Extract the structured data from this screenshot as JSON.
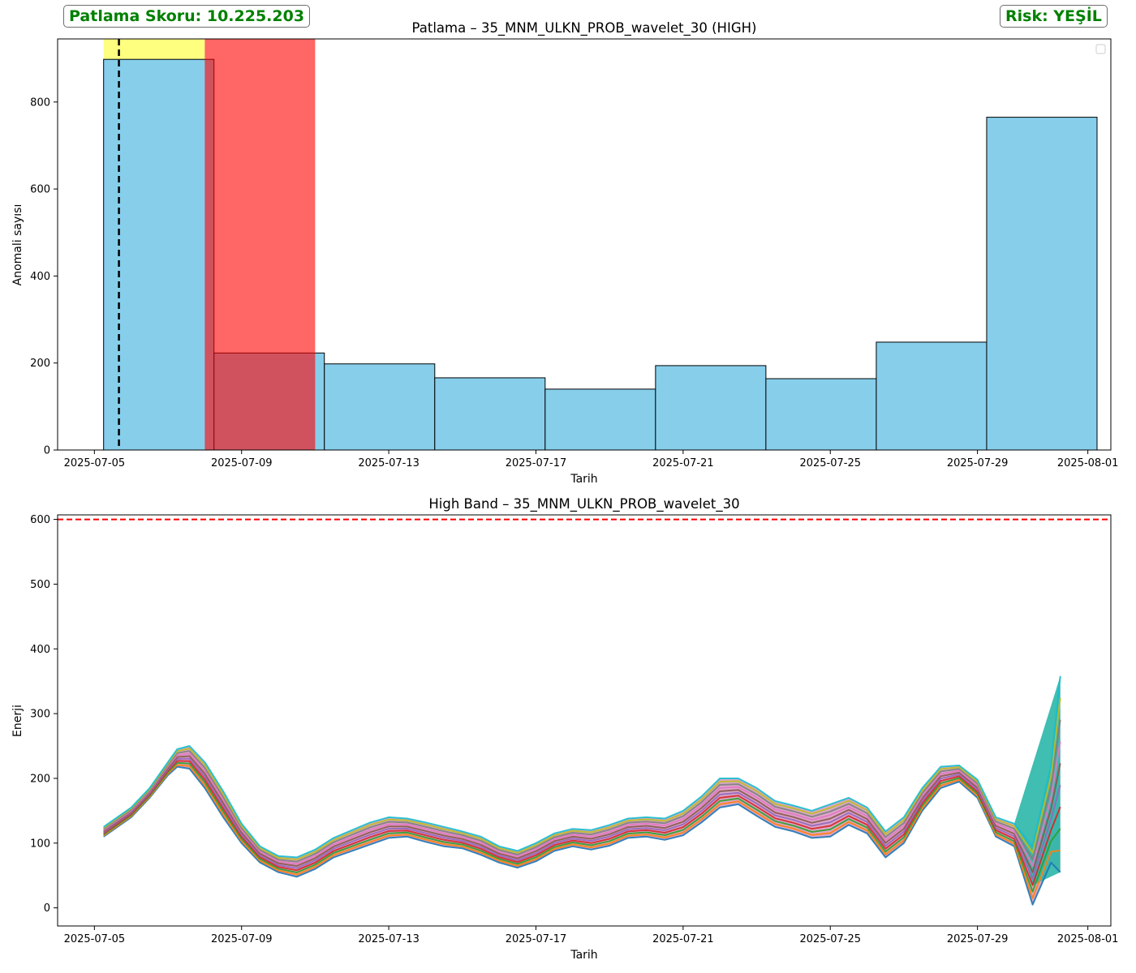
{
  "header": {
    "score_text": "Patlama Skoru: 10.225.203",
    "risk_text": "Risk: YEŞİL",
    "badge_color": "#008000"
  },
  "chart_data": [
    {
      "type": "bar",
      "title": "Patlama – 35_MNM_ULKN_PROB_wavelet_30 (HIGH)",
      "xlabel": "Tarih",
      "ylabel": "Anomali sayısı",
      "x_ticks": [
        "2025-07-05",
        "2025-07-09",
        "2025-07-13",
        "2025-07-17",
        "2025-07-21",
        "2025-07-25",
        "2025-07-29",
        "2025-08-01"
      ],
      "ylim": [
        0,
        945
      ],
      "y_ticks": [
        0,
        200,
        400,
        600,
        800
      ],
      "bar_color": "#87ceeb",
      "bins": [
        {
          "start": "2025-07-05 06:00",
          "end": "2025-07-08 06:00",
          "value": 898
        },
        {
          "start": "2025-07-08 06:00",
          "end": "2025-07-11 06:00",
          "value": 223
        },
        {
          "start": "2025-07-11 06:00",
          "end": "2025-07-14 06:00",
          "value": 198
        },
        {
          "start": "2025-07-14 06:00",
          "end": "2025-07-17 06:00",
          "value": 166
        },
        {
          "start": "2025-07-17 06:00",
          "end": "2025-07-20 06:00",
          "value": 140
        },
        {
          "start": "2025-07-20 06:00",
          "end": "2025-07-23 06:00",
          "value": 194
        },
        {
          "start": "2025-07-23 06:00",
          "end": "2025-07-26 06:00",
          "value": 164
        },
        {
          "start": "2025-07-26 06:00",
          "end": "2025-07-29 06:00",
          "value": 248
        },
        {
          "start": "2025-07-29 06:00",
          "end": "2025-08-01 06:00",
          "value": 765
        }
      ],
      "spans": [
        {
          "start": "2025-07-05 06:00",
          "end": "2025-07-08 00:00",
          "color": "#ffff00"
        },
        {
          "start": "2025-07-08 00:00",
          "end": "2025-07-11 00:00",
          "color": "#ff0000"
        }
      ],
      "vline": {
        "x": "2025-07-05 16:00",
        "color": "#000000",
        "style": "dashed"
      },
      "legend": "top-right (empty)"
    },
    {
      "type": "line",
      "title": "High Band – 35_MNM_ULKN_PROB_wavelet_30",
      "xlabel": "Tarih",
      "ylabel": "Enerji",
      "x_ticks": [
        "2025-07-05",
        "2025-07-09",
        "2025-07-13",
        "2025-07-17",
        "2025-07-21",
        "2025-07-25",
        "2025-07-29",
        "2025-08-01"
      ],
      "ylim": [
        -28,
        607
      ],
      "y_ticks": [
        0,
        100,
        200,
        300,
        400,
        500,
        600
      ],
      "threshold": {
        "y": 600,
        "color": "#ff0000",
        "style": "dashed"
      },
      "series_colors": [
        "#1f77b4",
        "#ff7f0e",
        "#2ca02c",
        "#d62728",
        "#9467bd",
        "#8c564b",
        "#e377c2",
        "#7f7f7f",
        "#bcbd22",
        "#17becf"
      ],
      "envelope": {
        "x": [
          "2025-07-05 06:00",
          "2025-07-06 00:00",
          "2025-07-06 12:00",
          "2025-07-07 00:00",
          "2025-07-07 06:00",
          "2025-07-07 14:00",
          "2025-07-08 00:00",
          "2025-07-08 12:00",
          "2025-07-09 00:00",
          "2025-07-09 12:00",
          "2025-07-10 00:00",
          "2025-07-10 12:00",
          "2025-07-11 00:00",
          "2025-07-11 12:00",
          "2025-07-12 00:00",
          "2025-07-12 12:00",
          "2025-07-13 00:00",
          "2025-07-13 12:00",
          "2025-07-14 00:00",
          "2025-07-14 12:00",
          "2025-07-15 00:00",
          "2025-07-15 12:00",
          "2025-07-16 00:00",
          "2025-07-16 12:00",
          "2025-07-17 00:00",
          "2025-07-17 12:00",
          "2025-07-18 00:00",
          "2025-07-18 12:00",
          "2025-07-19 00:00",
          "2025-07-19 12:00",
          "2025-07-20 00:00",
          "2025-07-20 12:00",
          "2025-07-21 00:00",
          "2025-07-21 12:00",
          "2025-07-22 00:00",
          "2025-07-22 12:00",
          "2025-07-23 00:00",
          "2025-07-23 12:00",
          "2025-07-24 00:00",
          "2025-07-24 12:00",
          "2025-07-25 00:00",
          "2025-07-25 12:00",
          "2025-07-26 00:00",
          "2025-07-26 12:00",
          "2025-07-27 00:00",
          "2025-07-27 12:00",
          "2025-07-28 00:00",
          "2025-07-28 12:00",
          "2025-07-29 00:00",
          "2025-07-29 12:00",
          "2025-07-30 00:00",
          "2025-07-30 12:00",
          "2025-07-31 00:00",
          "2025-07-31 06:00"
        ],
        "low": [
          110,
          140,
          170,
          205,
          218,
          215,
          185,
          140,
          100,
          70,
          55,
          48,
          60,
          78,
          88,
          98,
          108,
          110,
          102,
          95,
          92,
          82,
          70,
          62,
          72,
          88,
          95,
          90,
          96,
          108,
          110,
          105,
          112,
          132,
          155,
          160,
          142,
          125,
          118,
          108,
          110,
          128,
          115,
          78,
          100,
          150,
          185,
          195,
          170,
          110,
          95,
          5,
          70,
          55
        ],
        "high": [
          125,
          155,
          185,
          225,
          245,
          250,
          225,
          180,
          130,
          95,
          80,
          78,
          90,
          108,
          120,
          132,
          140,
          138,
          132,
          125,
          118,
          110,
          95,
          88,
          100,
          115,
          122,
          120,
          128,
          138,
          140,
          138,
          150,
          172,
          200,
          200,
          185,
          165,
          158,
          150,
          160,
          170,
          155,
          118,
          140,
          185,
          218,
          220,
          198,
          140,
          130,
          95,
          220,
          358
        ],
        "core": [
          117,
          147,
          177,
          215,
          231,
          232,
          205,
          160,
          115,
          82,
          67,
          62,
          75,
          93,
          104,
          115,
          124,
          124,
          117,
          110,
          105,
          96,
          82,
          75,
          86,
          101,
          108,
          105,
          112,
          123,
          125,
          121,
          131,
          152,
          177,
          180,
          163,
          145,
          138,
          129,
          135,
          149,
          135,
          98,
          120,
          167,
          201,
          207,
          184,
          125,
          112,
          50,
          100,
          70
        ]
      }
    }
  ]
}
